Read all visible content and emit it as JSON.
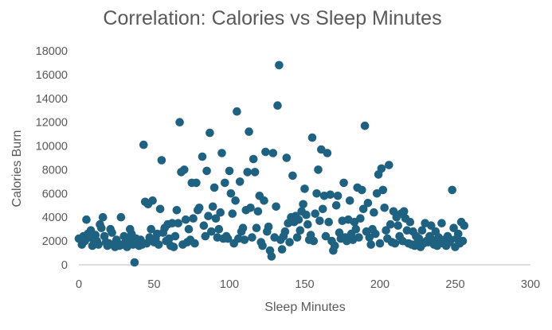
{
  "chart_data": {
    "type": "scatter",
    "title": "Correlation: Calories vs Sleep Minutes",
    "xlabel": "Sleep Minutes",
    "ylabel": "Calories Burn",
    "xlim": [
      0,
      300
    ],
    "ylim": [
      0,
      18000
    ],
    "x_ticks": [
      "0",
      "50",
      "100",
      "150",
      "200",
      "250",
      "300"
    ],
    "y_ticks": [
      "0",
      "2000",
      "4000",
      "6000",
      "8000",
      "10000",
      "12000",
      "14000",
      "16000",
      "18000"
    ],
    "grid": false,
    "legend": "none",
    "marker_color": "#1f6180",
    "points": [
      [
        0,
        2200
      ],
      [
        2,
        1700
      ],
      [
        3,
        2400
      ],
      [
        4,
        2000
      ],
      [
        5,
        3800
      ],
      [
        6,
        2600
      ],
      [
        7,
        2300
      ],
      [
        8,
        2900
      ],
      [
        9,
        1600
      ],
      [
        10,
        1800
      ],
      [
        11,
        2500
      ],
      [
        12,
        2000
      ],
      [
        13,
        1700
      ],
      [
        14,
        3400
      ],
      [
        15,
        3100
      ],
      [
        16,
        4000
      ],
      [
        17,
        2400
      ],
      [
        18,
        1900
      ],
      [
        19,
        1600
      ],
      [
        20,
        1800
      ],
      [
        21,
        3000
      ],
      [
        22,
        2700
      ],
      [
        23,
        1700
      ],
      [
        24,
        1500
      ],
      [
        25,
        2100
      ],
      [
        26,
        1800
      ],
      [
        27,
        1600
      ],
      [
        28,
        4000
      ],
      [
        29,
        1700
      ],
      [
        30,
        2400
      ],
      [
        31,
        1900
      ],
      [
        32,
        1500
      ],
      [
        33,
        2200
      ],
      [
        34,
        3000
      ],
      [
        35,
        2600
      ],
      [
        36,
        1700
      ],
      [
        37,
        200
      ],
      [
        38,
        2200
      ],
      [
        39,
        1900
      ],
      [
        40,
        1600
      ],
      [
        41,
        2100
      ],
      [
        42,
        1700
      ],
      [
        43,
        10100
      ],
      [
        44,
        5300
      ],
      [
        45,
        1800
      ],
      [
        46,
        5100
      ],
      [
        47,
        2300
      ],
      [
        48,
        3000
      ],
      [
        49,
        5400
      ],
      [
        50,
        1900
      ],
      [
        51,
        2200
      ],
      [
        52,
        2600
      ],
      [
        53,
        1700
      ],
      [
        54,
        4700
      ],
      [
        55,
        8800
      ],
      [
        56,
        2700
      ],
      [
        57,
        3100
      ],
      [
        58,
        2000
      ],
      [
        59,
        3400
      ],
      [
        60,
        2200
      ],
      [
        61,
        1600
      ],
      [
        62,
        3500
      ],
      [
        63,
        1500
      ],
      [
        64,
        2400
      ],
      [
        65,
        4600
      ],
      [
        66,
        3500
      ],
      [
        67,
        12000
      ],
      [
        68,
        7800
      ],
      [
        69,
        1700
      ],
      [
        70,
        8000
      ],
      [
        71,
        3800
      ],
      [
        72,
        1900
      ],
      [
        73,
        3000
      ],
      [
        74,
        2100
      ],
      [
        75,
        6900
      ],
      [
        76,
        3900
      ],
      [
        77,
        1800
      ],
      [
        78,
        6900
      ],
      [
        79,
        4600
      ],
      [
        80,
        4800
      ],
      [
        82,
        9100
      ],
      [
        83,
        3300
      ],
      [
        84,
        2400
      ],
      [
        85,
        7900
      ],
      [
        86,
        4100
      ],
      [
        87,
        11100
      ],
      [
        88,
        2800
      ],
      [
        89,
        4900
      ],
      [
        90,
        6500
      ],
      [
        91,
        3900
      ],
      [
        92,
        2300
      ],
      [
        93,
        3000
      ],
      [
        94,
        4400
      ],
      [
        95,
        9400
      ],
      [
        96,
        2200
      ],
      [
        97,
        6900
      ],
      [
        98,
        2400
      ],
      [
        99,
        2200
      ],
      [
        100,
        7900
      ],
      [
        101,
        6000
      ],
      [
        102,
        4300
      ],
      [
        103,
        1800
      ],
      [
        104,
        5400
      ],
      [
        105,
        12900
      ],
      [
        106,
        2200
      ],
      [
        107,
        7000
      ],
      [
        108,
        2800
      ],
      [
        109,
        3100
      ],
      [
        110,
        2100
      ],
      [
        111,
        4600
      ],
      [
        112,
        7800
      ],
      [
        113,
        11200
      ],
      [
        114,
        4800
      ],
      [
        115,
        2300
      ],
      [
        116,
        8900
      ],
      [
        117,
        7800
      ],
      [
        118,
        3100
      ],
      [
        119,
        4500
      ],
      [
        120,
        5800
      ],
      [
        121,
        1900
      ],
      [
        122,
        1600
      ],
      [
        123,
        5400
      ],
      [
        124,
        9500
      ],
      [
        125,
        2800
      ],
      [
        126,
        3200
      ],
      [
        127,
        1200
      ],
      [
        128,
        700
      ],
      [
        129,
        9400
      ],
      [
        130,
        2300
      ],
      [
        131,
        4900
      ],
      [
        132,
        13400
      ],
      [
        133,
        16800
      ],
      [
        134,
        2100
      ],
      [
        135,
        1300
      ],
      [
        136,
        2400
      ],
      [
        137,
        2800
      ],
      [
        138,
        9000
      ],
      [
        139,
        3500
      ],
      [
        140,
        1900
      ],
      [
        141,
        4000
      ],
      [
        142,
        7500
      ],
      [
        143,
        3600
      ],
      [
        144,
        4100
      ],
      [
        145,
        2300
      ],
      [
        146,
        3800
      ],
      [
        147,
        2900
      ],
      [
        148,
        4500
      ],
      [
        149,
        5100
      ],
      [
        150,
        6400
      ],
      [
        151,
        4200
      ],
      [
        152,
        3400
      ],
      [
        153,
        2100
      ],
      [
        154,
        2500
      ],
      [
        155,
        10700
      ],
      [
        156,
        2000
      ],
      [
        157,
        4300
      ],
      [
        158,
        6000
      ],
      [
        159,
        8000
      ],
      [
        160,
        3700
      ],
      [
        161,
        9700
      ],
      [
        162,
        4700
      ],
      [
        163,
        5800
      ],
      [
        164,
        2400
      ],
      [
        165,
        9400
      ],
      [
        166,
        3600
      ],
      [
        167,
        5900
      ],
      [
        168,
        2000
      ],
      [
        169,
        1200
      ],
      [
        170,
        1600
      ],
      [
        171,
        5000
      ],
      [
        172,
        5800
      ],
      [
        173,
        2700
      ],
      [
        174,
        2200
      ],
      [
        175,
        3700
      ],
      [
        176,
        6900
      ],
      [
        177,
        2300
      ],
      [
        178,
        2000
      ],
      [
        179,
        3800
      ],
      [
        180,
        5400
      ],
      [
        181,
        2600
      ],
      [
        182,
        2100
      ],
      [
        183,
        3600
      ],
      [
        184,
        3000
      ],
      [
        185,
        6500
      ],
      [
        186,
        2300
      ],
      [
        187,
        3900
      ],
      [
        188,
        6300
      ],
      [
        189,
        4700
      ],
      [
        190,
        11700
      ],
      [
        191,
        2800
      ],
      [
        192,
        5200
      ],
      [
        193,
        2300
      ],
      [
        194,
        1700
      ],
      [
        195,
        3000
      ],
      [
        196,
        4400
      ],
      [
        197,
        2600
      ],
      [
        198,
        6000
      ],
      [
        199,
        7600
      ],
      [
        200,
        1800
      ],
      [
        201,
        8100
      ],
      [
        202,
        6300
      ],
      [
        203,
        4800
      ],
      [
        204,
        2900
      ],
      [
        205,
        2200
      ],
      [
        206,
        8400
      ],
      [
        207,
        3400
      ],
      [
        208,
        1900
      ],
      [
        209,
        4500
      ],
      [
        210,
        1800
      ],
      [
        211,
        4000
      ],
      [
        212,
        3300
      ],
      [
        213,
        2400
      ],
      [
        214,
        4300
      ],
      [
        215,
        2000
      ],
      [
        216,
        4500
      ],
      [
        217,
        3900
      ],
      [
        218,
        2900
      ],
      [
        219,
        1800
      ],
      [
        220,
        3600
      ],
      [
        221,
        1700
      ],
      [
        222,
        2800
      ],
      [
        223,
        1600
      ],
      [
        224,
        2400
      ],
      [
        225,
        1900
      ],
      [
        226,
        2200
      ],
      [
        227,
        1500
      ],
      [
        228,
        2900
      ],
      [
        229,
        1800
      ],
      [
        230,
        3500
      ],
      [
        231,
        2000
      ],
      [
        232,
        1900
      ],
      [
        233,
        2400
      ],
      [
        234,
        3300
      ],
      [
        235,
        2100
      ],
      [
        236,
        1700
      ],
      [
        237,
        2800
      ],
      [
        238,
        1600
      ],
      [
        239,
        2300
      ],
      [
        240,
        2000
      ],
      [
        241,
        3500
      ],
      [
        242,
        1800
      ],
      [
        243,
        2100
      ],
      [
        244,
        1600
      ],
      [
        245,
        2400
      ],
      [
        246,
        1900
      ],
      [
        247,
        2100
      ],
      [
        248,
        6300
      ],
      [
        249,
        3100
      ],
      [
        250,
        1500
      ],
      [
        251,
        2200
      ],
      [
        252,
        2600
      ],
      [
        253,
        1800
      ],
      [
        254,
        3600
      ],
      [
        255,
        2000
      ],
      [
        256,
        3300
      ]
    ]
  }
}
